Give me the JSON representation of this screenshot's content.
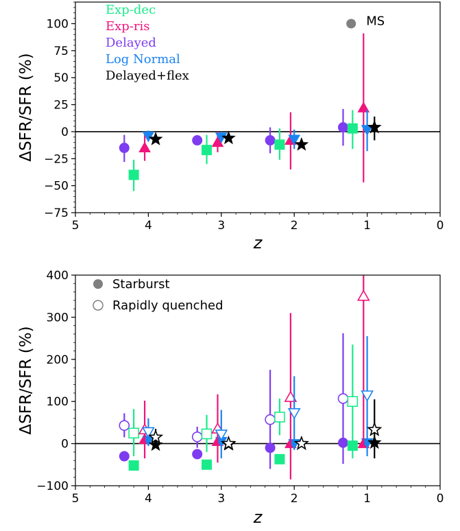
{
  "colors": {
    "Exp-dec": "#1aeb8a",
    "Exp-ris": "#f0147c",
    "Delayed": "#7d3cf0",
    "Log Normal": "#1a84f0",
    "Delayed+flex": "#000000",
    "marker_gray": "#808080"
  },
  "chart_data": [
    {
      "type": "scatter",
      "xlabel": "z",
      "ylabel": "ΔSFR/SFR (%)",
      "xlim": [
        5,
        0
      ],
      "ylim": [
        -75,
        120
      ],
      "xticks": [
        "5",
        "4",
        "3",
        "2",
        "1",
        "0"
      ],
      "yticks": [
        "−75",
        "−50",
        "−25",
        "0",
        "25",
        "50",
        "75",
        "100"
      ],
      "ytick_values": [
        -75,
        -50,
        -25,
        0,
        25,
        50,
        75,
        100
      ],
      "reference_line": 0,
      "legend": {
        "placement": "top-left",
        "entries": [
          "Exp-dec",
          "Exp-ris",
          "Delayed",
          "Log Normal",
          "Delayed+flex"
        ]
      },
      "marker_legend": {
        "placement": "top-right",
        "label": "MS",
        "marker": "filled circle",
        "x": 1.22,
        "y": 100
      },
      "series": [
        {
          "name": "Delayed",
          "marker": "circle",
          "filled": true,
          "points": [
            {
              "x": 4.33,
              "y": -15,
              "lo": -28,
              "hi": -3
            },
            {
              "x": 3.33,
              "y": -8,
              "lo": -11,
              "hi": -5
            },
            {
              "x": 2.33,
              "y": -8,
              "lo": -20,
              "hi": 4
            },
            {
              "x": 1.33,
              "y": 4,
              "lo": -13,
              "hi": 21
            }
          ]
        },
        {
          "name": "Exp-dec",
          "marker": "square",
          "filled": true,
          "points": [
            {
              "x": 4.2,
              "y": -40,
              "lo": -55,
              "hi": -26
            },
            {
              "x": 3.2,
              "y": -17,
              "lo": -30,
              "hi": -3
            },
            {
              "x": 2.2,
              "y": -12,
              "lo": -26,
              "hi": 3
            },
            {
              "x": 1.2,
              "y": 3,
              "lo": -16,
              "hi": 20
            }
          ]
        },
        {
          "name": "Exp-ris",
          "marker": "triangle-up",
          "filled": true,
          "points": [
            {
              "x": 4.05,
              "y": -15,
              "lo": -27,
              "hi": -3
            },
            {
              "x": 3.05,
              "y": -10,
              "lo": -19,
              "hi": 0
            },
            {
              "x": 2.05,
              "y": -8,
              "lo": -35,
              "hi": 18
            },
            {
              "x": 1.05,
              "y": 22,
              "lo": -47,
              "hi": 91
            }
          ]
        },
        {
          "name": "Log Normal",
          "marker": "triangle-down",
          "filled": true,
          "points": [
            {
              "x": 4.0,
              "y": -4,
              "lo": -9,
              "hi": 1
            },
            {
              "x": 3.0,
              "y": -5,
              "lo": -10,
              "hi": 0
            },
            {
              "x": 2.0,
              "y": -7,
              "lo": -16,
              "hi": 2
            },
            {
              "x": 1.0,
              "y": 2,
              "lo": -18,
              "hi": 20
            }
          ]
        },
        {
          "name": "Delayed+flex",
          "marker": "star",
          "filled": true,
          "points": [
            {
              "x": 3.9,
              "y": -7,
              "lo": -10,
              "hi": -4
            },
            {
              "x": 2.9,
              "y": -6,
              "lo": -9,
              "hi": -3
            },
            {
              "x": 1.9,
              "y": -12,
              "lo": -14,
              "hi": -10
            },
            {
              "x": 0.9,
              "y": 4,
              "lo": -8,
              "hi": 14
            }
          ]
        }
      ]
    },
    {
      "type": "scatter",
      "xlabel": "z",
      "ylabel": "ΔSFR/SFR (%)",
      "xlim": [
        5,
        0
      ],
      "ylim": [
        -100,
        400
      ],
      "xticks": [
        "5",
        "4",
        "3",
        "2",
        "1",
        "0"
      ],
      "yticks": [
        "−100",
        "0",
        "100",
        "200",
        "300",
        "400"
      ],
      "ytick_values": [
        -100,
        0,
        100,
        200,
        300,
        400
      ],
      "reference_line": 0,
      "legend": {
        "placement": "top-left",
        "entries": [
          "Starburst",
          "Rapidly quenched"
        ]
      },
      "series": [
        {
          "name": "Delayed",
          "marker": "circle",
          "filled": true,
          "points": [
            {
              "x": 4.33,
              "y": -30
            },
            {
              "x": 3.33,
              "y": -25
            },
            {
              "x": 2.33,
              "y": -10
            },
            {
              "x": 1.33,
              "y": 2
            }
          ]
        },
        {
          "name": "Exp-dec",
          "marker": "square",
          "filled": true,
          "points": [
            {
              "x": 4.2,
              "y": -52
            },
            {
              "x": 3.2,
              "y": -50
            },
            {
              "x": 2.2,
              "y": -37
            },
            {
              "x": 1.2,
              "y": -5
            }
          ]
        },
        {
          "name": "Exp-ris",
          "marker": "triangle-up",
          "filled": true,
          "points": [
            {
              "x": 4.05,
              "y": 10
            },
            {
              "x": 3.05,
              "y": 5
            },
            {
              "x": 2.05,
              "y": 0
            },
            {
              "x": 1.05,
              "y": 0
            }
          ]
        },
        {
          "name": "Log Normal",
          "marker": "triangle-down",
          "filled": true,
          "points": [
            {
              "x": 4.0,
              "y": 8
            },
            {
              "x": 3.0,
              "y": 5
            },
            {
              "x": 2.0,
              "y": 0
            },
            {
              "x": 1.0,
              "y": 2
            }
          ]
        },
        {
          "name": "Delayed+flex",
          "marker": "star",
          "filled": true,
          "points": [
            {
              "x": 3.9,
              "y": -3
            },
            {
              "x": 2.9,
              "y": -2
            },
            {
              "x": 1.9,
              "y": 0
            },
            {
              "x": 0.9,
              "y": 2
            }
          ]
        },
        {
          "name": "Delayed",
          "marker": "circle",
          "filled": false,
          "points": [
            {
              "x": 4.33,
              "y": 43,
              "lo": 15,
              "hi": 72
            },
            {
              "x": 3.33,
              "y": 16,
              "lo": -10,
              "hi": 40
            },
            {
              "x": 2.33,
              "y": 57,
              "lo": -60,
              "hi": 175
            },
            {
              "x": 1.33,
              "y": 107,
              "lo": -48,
              "hi": 262
            }
          ]
        },
        {
          "name": "Exp-dec",
          "marker": "square",
          "filled": false,
          "points": [
            {
              "x": 4.2,
              "y": 25,
              "lo": -30,
              "hi": 82
            },
            {
              "x": 3.2,
              "y": 23,
              "lo": -20,
              "hi": 68
            },
            {
              "x": 2.2,
              "y": 63,
              "lo": 20,
              "hi": 107
            },
            {
              "x": 1.2,
              "y": 100,
              "lo": -35,
              "hi": 235
            }
          ]
        },
        {
          "name": "Exp-ris",
          "marker": "triangle-up",
          "filled": false,
          "points": [
            {
              "x": 4.05,
              "y": 33,
              "lo": -35,
              "hi": 102
            },
            {
              "x": 3.05,
              "y": 35,
              "lo": -45,
              "hi": 117
            },
            {
              "x": 2.05,
              "y": 110,
              "lo": -85,
              "hi": 310
            },
            {
              "x": 1.05,
              "y": 350,
              "lo": 0,
              "hi": 400
            }
          ]
        },
        {
          "name": "Log Normal",
          "marker": "triangle-down",
          "filled": false,
          "points": [
            {
              "x": 4.0,
              "y": 28,
              "lo": -5,
              "hi": 60
            },
            {
              "x": 3.0,
              "y": 22,
              "lo": -35,
              "hi": 80
            },
            {
              "x": 2.0,
              "y": 73,
              "lo": -15,
              "hi": 160
            },
            {
              "x": 1.0,
              "y": 115,
              "lo": -30,
              "hi": 255
            }
          ]
        },
        {
          "name": "Delayed+flex",
          "marker": "star",
          "filled": false,
          "points": [
            {
              "x": 3.9,
              "y": 15,
              "lo": -5,
              "hi": 35
            },
            {
              "x": 2.9,
              "y": 0
            },
            {
              "x": 1.9,
              "y": 0
            },
            {
              "x": 0.9,
              "y": 33,
              "lo": -35,
              "hi": 105
            }
          ]
        }
      ]
    }
  ]
}
